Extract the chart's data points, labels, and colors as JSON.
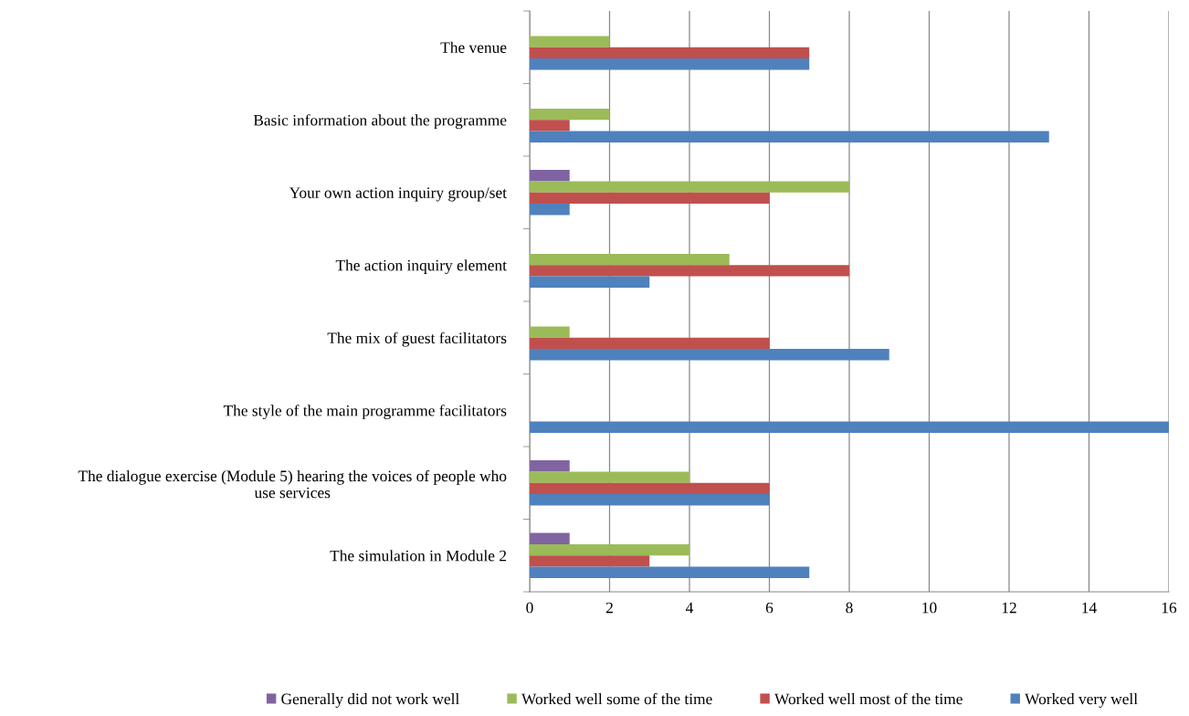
{
  "chart_data": {
    "type": "bar",
    "orientation": "horizontal",
    "categories": [
      "The venue",
      "Basic information about the programme",
      "Your own action inquiry group/set",
      "The action inquiry element",
      "The mix of guest facilitators",
      "The style of the main programme facilitators",
      "The dialogue exercise (Module 5) hearing the voices of people who\nuse services",
      "The simulation in Module 2"
    ],
    "series": [
      {
        "name": "Generally did not work well",
        "color": "#8064a2",
        "values": [
          null,
          null,
          1,
          null,
          null,
          null,
          1,
          1
        ]
      },
      {
        "name": "Worked well some of the time",
        "color": "#9bbb59",
        "values": [
          2,
          2,
          8,
          5,
          1,
          null,
          4,
          4
        ]
      },
      {
        "name": "Worked well most of the time",
        "color": "#c0504d",
        "values": [
          7,
          1,
          6,
          8,
          6,
          null,
          6,
          3
        ]
      },
      {
        "name": "Worked very well",
        "color": "#4f81bd",
        "values": [
          7,
          13,
          1,
          3,
          9,
          16,
          6,
          7
        ]
      }
    ],
    "xlim": [
      0,
      16
    ],
    "xticks": [
      0,
      2,
      4,
      6,
      8,
      10,
      12,
      14,
      16
    ],
    "grid": "x",
    "legend": "bottom"
  }
}
